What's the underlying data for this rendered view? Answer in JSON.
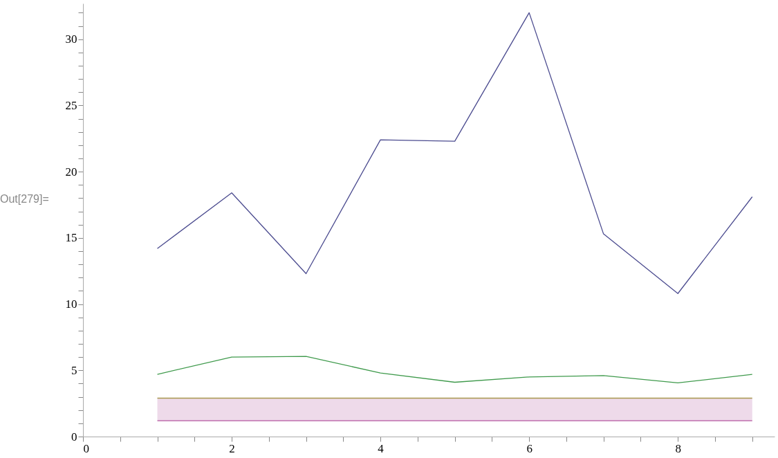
{
  "chart_data": {
    "type": "line",
    "annotations": [
      "Out[279]="
    ],
    "x": [
      1,
      2,
      3,
      4,
      5,
      6,
      7,
      8,
      9
    ],
    "series": [
      {
        "color": "#4b4b8f",
        "values": [
          14.2,
          18.4,
          12.3,
          22.4,
          22.3,
          32.0,
          15.3,
          10.8,
          18.1
        ]
      },
      {
        "color": "#3f9a4c",
        "values": [
          4.7,
          6.0,
          6.05,
          4.8,
          4.1,
          4.5,
          4.6,
          4.05,
          4.7
        ]
      },
      {
        "color": "#a8974e",
        "values": [
          2.9,
          2.9,
          2.9,
          2.9,
          2.9,
          2.9,
          2.9,
          2.9,
          2.9
        ]
      },
      {
        "color": "#b3569f",
        "values": [
          1.2,
          1.2,
          1.2,
          1.2,
          1.2,
          1.2,
          1.2,
          1.2,
          1.2
        ],
        "lower": [
          1.2,
          1.2,
          1.2,
          1.2,
          1.2,
          1.2,
          1.2,
          1.2,
          1.2
        ],
        "upper": [
          2.9,
          2.9,
          2.9,
          2.9,
          2.9,
          2.9,
          2.9,
          2.9,
          2.9
        ]
      }
    ],
    "xlim": [
      0,
      9.3
    ],
    "ylim": [
      0,
      32.7
    ],
    "xticks": [
      0,
      {
        "value": 0.5,
        "label": null
      },
      {
        "value": 1,
        "label": null
      },
      {
        "value": 1.5,
        "label": null
      },
      2,
      {
        "value": 2.5,
        "label": null
      },
      {
        "value": 3,
        "label": null
      },
      {
        "value": 3.5,
        "label": null
      },
      4,
      {
        "value": 4.5,
        "label": null
      },
      {
        "value": 5,
        "label": null
      },
      {
        "value": 5.5,
        "label": null
      },
      6,
      {
        "value": 6.5,
        "label": null
      },
      {
        "value": 7,
        "label": null
      },
      {
        "value": 7.5,
        "label": null
      },
      8,
      {
        "value": 8.5,
        "label": null
      },
      {
        "value": 9,
        "label": null
      }
    ],
    "yticks": [
      0,
      {
        "value": 1,
        "label": null
      },
      {
        "value": 2,
        "label": null
      },
      {
        "value": 3,
        "label": null
      },
      {
        "value": 4,
        "label": null
      },
      5,
      {
        "value": 6,
        "label": null
      },
      {
        "value": 7,
        "label": null
      },
      {
        "value": 8,
        "label": null
      },
      {
        "value": 9,
        "label": null
      },
      10,
      {
        "value": 11,
        "label": null
      },
      {
        "value": 12,
        "label": null
      },
      {
        "value": 13,
        "label": null
      },
      {
        "value": 14,
        "label": null
      },
      15,
      {
        "value": 16,
        "label": null
      },
      {
        "value": 17,
        "label": null
      },
      {
        "value": 18,
        "label": null
      },
      {
        "value": 19,
        "label": null
      },
      20,
      {
        "value": 21,
        "label": null
      },
      {
        "value": 22,
        "label": null
      },
      {
        "value": 23,
        "label": null
      },
      {
        "value": 24,
        "label": null
      },
      25,
      {
        "value": 26,
        "label": null
      },
      {
        "value": 27,
        "label": null
      },
      {
        "value": 28,
        "label": null
      },
      {
        "value": 29,
        "label": null
      },
      30,
      {
        "value": 31,
        "label": null
      },
      {
        "value": 32,
        "label": null
      }
    ],
    "grid": false,
    "marker": "none",
    "line_style": "solid"
  }
}
